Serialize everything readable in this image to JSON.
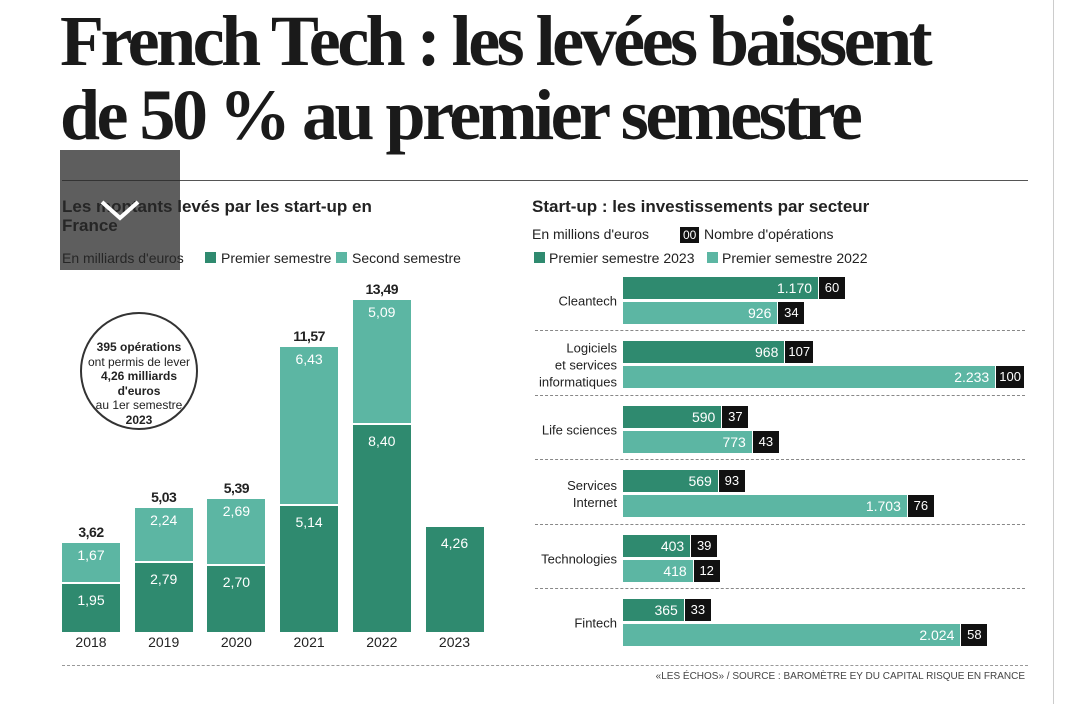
{
  "header": {
    "title": [
      "French Tech : les levées baissent",
      "de 50 % au premier semestre"
    ]
  },
  "chart_data": [
    {
      "type": "stacked-bar",
      "title": "Les montants levés par les start-up en France",
      "subtitle": "En milliards d'euros",
      "categories": [
        "2018",
        "2019",
        "2020",
        "2021",
        "2022",
        "2023"
      ],
      "series": [
        {
          "name": "Premier semestre",
          "color": "#2f8a6f",
          "values": [
            1.95,
            2.79,
            2.7,
            5.14,
            8.4,
            4.26
          ],
          "value_labels": [
            "1,95",
            "2,79",
            "2,70",
            "5,14",
            "8,40",
            "4,26"
          ]
        },
        {
          "name": "Second semestre",
          "color": "#5cb6a3",
          "values": [
            1.67,
            2.24,
            2.69,
            6.43,
            5.09,
            null
          ],
          "value_labels": [
            "1,67",
            "2,24",
            "2,69",
            "6,43",
            "5,09",
            null
          ]
        }
      ],
      "totals": [
        3.62,
        5.03,
        5.39,
        11.57,
        13.49,
        null
      ],
      "total_labels": [
        "3,62",
        "5,03",
        "5,39",
        "11,57",
        "13,49",
        null
      ],
      "annotation": [
        "395 opérations",
        "ont permis de lever",
        "4,26 milliards",
        "d'euros",
        "au 1er semestre",
        "2023"
      ]
    },
    {
      "type": "grouped-hbar",
      "title": "Start-up : les investissements par secteur",
      "subtitle": "En millions d'euros",
      "operations_legend": {
        "sample": "00",
        "label": "Nombre d'opérations"
      },
      "categories": [
        "Cleantech",
        "Logiciels\net services\ninformatiques",
        "Life sciences",
        "Services\nInternet",
        "Technologies",
        "Fintech"
      ],
      "series": [
        {
          "name": "Premier semestre 2023",
          "color": "#2f8a6f",
          "values": [
            1170,
            968,
            590,
            569,
            403,
            365
          ],
          "value_labels": [
            "1.170",
            "968",
            "590",
            "569",
            "403",
            "365"
          ],
          "operations": [
            60,
            107,
            37,
            93,
            39,
            33
          ]
        },
        {
          "name": "Premier semestre 2022",
          "color": "#5cb6a3",
          "values": [
            926,
            2233,
            773,
            1703,
            418,
            2024
          ],
          "value_labels": [
            "926",
            "2.233",
            "773",
            "1.703",
            "418",
            "2.024"
          ],
          "operations": [
            34,
            100,
            43,
            76,
            12,
            58
          ]
        }
      ]
    }
  ],
  "source": "«LES ÉCHOS» / SOURCE : BAROMÈTRE EY DU CAPITAL RISQUE EN FRANCE"
}
